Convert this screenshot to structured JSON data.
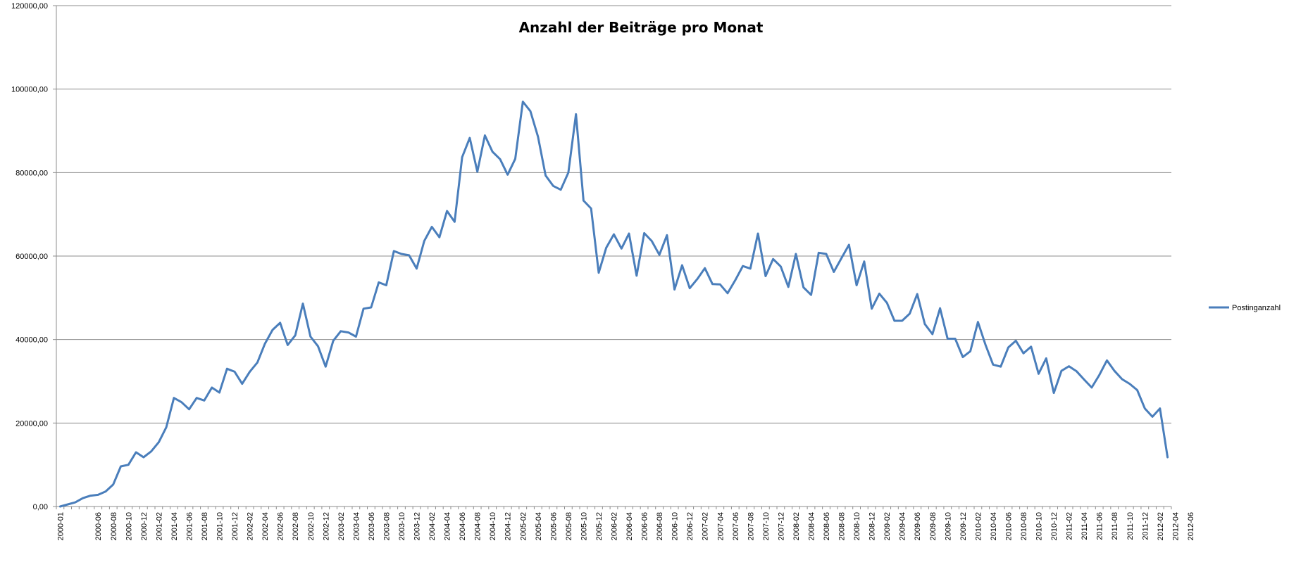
{
  "chart_data": {
    "type": "line",
    "title": "Anzahl der Beiträge pro Monat",
    "xlabel": "",
    "ylabel": "",
    "ylim": [
      0,
      120000
    ],
    "y_ticks": [
      "0,00",
      "20000,00",
      "40000,00",
      "60000,00",
      "80000,00",
      "100000,00",
      "120000,00"
    ],
    "grid": true,
    "legend_position": "right",
    "x_start": "2000-01",
    "x_end": "2012-07",
    "x_tick_labels": [
      "2000-01",
      "2000-06",
      "2000-08",
      "2000-10",
      "2000-12",
      "2001-02",
      "2001-04",
      "2001-06",
      "2001-08",
      "2001-10",
      "2001-12",
      "2002-02",
      "2002-04",
      "2002-06",
      "2002-08",
      "2002-10",
      "2002-12",
      "2003-02",
      "2003-04",
      "2003-06",
      "2003-08",
      "2003-10",
      "2003-12",
      "2004-02",
      "2004-04",
      "2004-06",
      "2004-08",
      "2004-10",
      "2004-12",
      "2005-02",
      "2005-04",
      "2005-06",
      "2005-08",
      "2005-10",
      "2005-12",
      "2006-02",
      "2006-04",
      "2006-06",
      "2006-08",
      "2006-10",
      "2006-12",
      "2007-02",
      "2007-04",
      "2007-06",
      "2007-08",
      "2007-10",
      "2007-12",
      "2008-02",
      "2008-04",
      "2008-06",
      "2008-08",
      "2008-10",
      "2008-12",
      "2009-02",
      "2009-04",
      "2009-06",
      "2009-08",
      "2009-10",
      "2009-12",
      "2010-02",
      "2010-04",
      "2010-06",
      "2010-08",
      "2010-10",
      "2010-12",
      "2011-02",
      "2011-04",
      "2011-06",
      "2011-08",
      "2011-10",
      "2011-12",
      "2012-02",
      "2012-04",
      "2012-06"
    ],
    "series": [
      {
        "name": "Postinganzahl",
        "color": "#4a7ebb",
        "values": [
          0,
          500,
          1000,
          2000,
          2600,
          2800,
          3600,
          5300,
          9600,
          10000,
          13000,
          11800,
          13200,
          15400,
          19000,
          26000,
          25000,
          23300,
          26000,
          25400,
          28500,
          27300,
          33000,
          32300,
          29400,
          32300,
          34500,
          39000,
          42300,
          44000,
          38700,
          41000,
          48600,
          40700,
          38400,
          33500,
          39700,
          42000,
          41700,
          40700,
          47400,
          47700,
          53700,
          53000,
          61200,
          60500,
          60200,
          57000,
          63600,
          67000,
          64500,
          70800,
          68200,
          83700,
          88300,
          80200,
          88900,
          85000,
          83200,
          79500,
          83300,
          97000,
          94700,
          88600,
          79300,
          76800,
          75900,
          80000,
          94000,
          73300,
          71400,
          56000,
          62000,
          65200,
          61800,
          65400,
          55300,
          65500,
          63600,
          60300,
          65000,
          52000,
          57800,
          52300,
          54500,
          57100,
          53300,
          53200,
          51100,
          54200,
          57600,
          57000,
          65400,
          55200,
          59300,
          57500,
          52600,
          60500,
          52500,
          50700,
          60800,
          60500,
          56200,
          59500,
          62700,
          53000,
          58700,
          47400,
          51000,
          48800,
          44500,
          44500,
          46200,
          50900,
          43700,
          41300,
          47500,
          40200,
          40200,
          35800,
          37200,
          44200,
          38700,
          34000,
          33500,
          38100,
          39700,
          36700,
          38300,
          31800,
          35500,
          27200,
          32500,
          33600,
          32400,
          30400,
          28500,
          31500,
          35000,
          32500,
          30500,
          29400,
          27900,
          23500,
          21500,
          23500,
          11800
        ]
      }
    ]
  }
}
